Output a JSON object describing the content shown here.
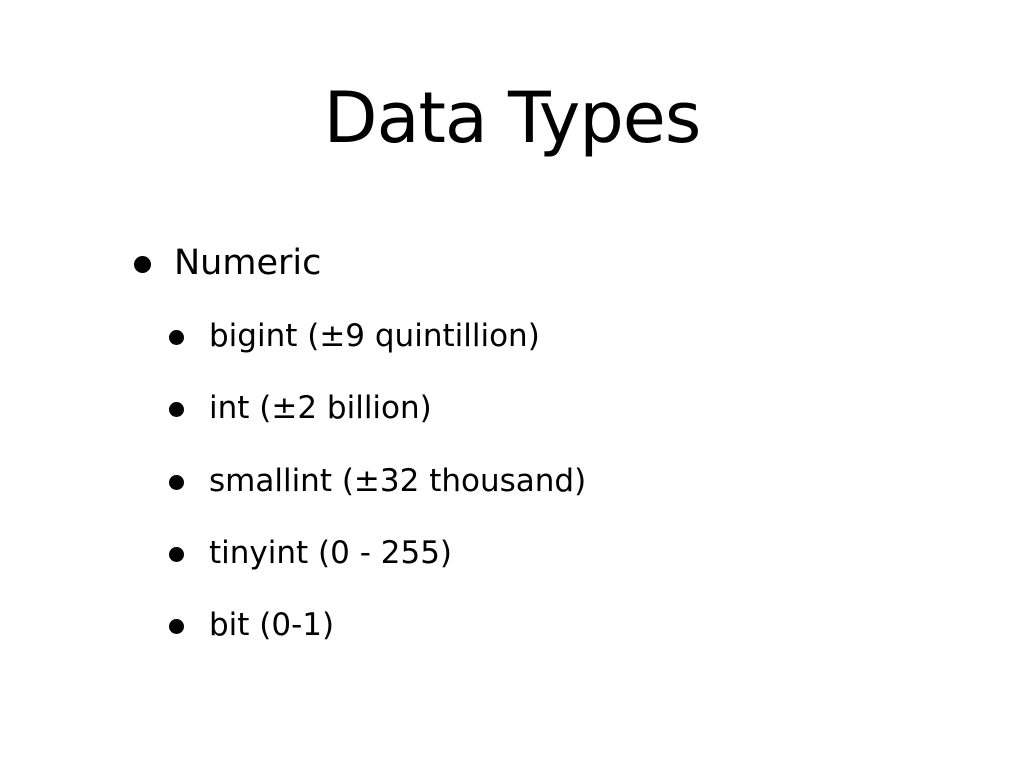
{
  "slide": {
    "title": "Data Types",
    "bullets": [
      {
        "text": "Numeric",
        "level": 1
      },
      {
        "text": "bigint (±9 quintillion)",
        "level": 2
      },
      {
        "text": "int (±2 billion)",
        "level": 2
      },
      {
        "text": "smallint (±32 thousand)",
        "level": 2
      },
      {
        "text": "tinyint (0 - 255)",
        "level": 2
      },
      {
        "text": "bit (0-1)",
        "level": 2
      }
    ]
  },
  "colors": {
    "background": "#ffffff",
    "text": "#000000"
  }
}
